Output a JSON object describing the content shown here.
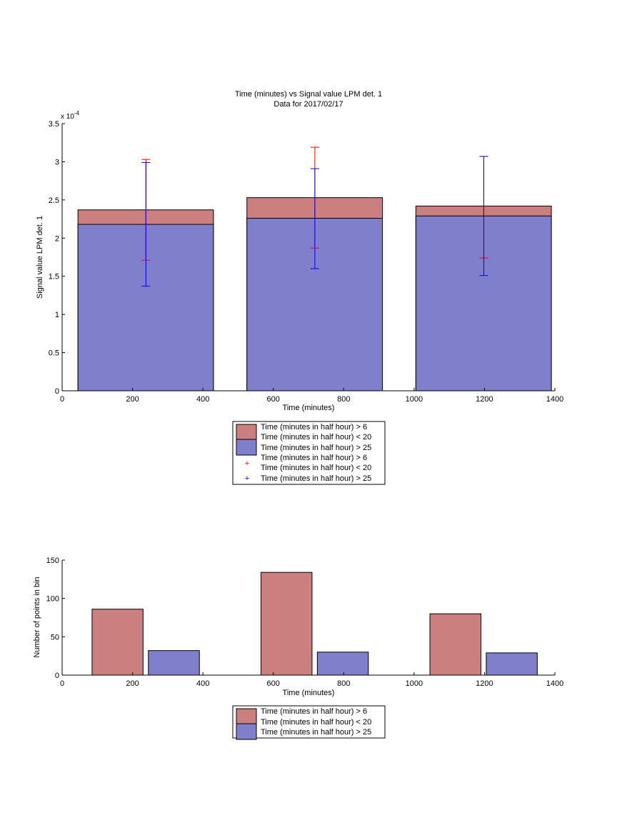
{
  "colors": {
    "red": "#cc7f7f",
    "blue": "#7f7fcc",
    "err_red": "#ff0000",
    "err_blue": "#0000ff"
  },
  "chart_data": [
    {
      "type": "bar",
      "title": "Time (minutes) vs Signal value LPM det. 1",
      "subtitle": "Data for 2017/02/17",
      "xlabel": "Time (minutes)",
      "ylabel": "Signal value LPM det. 1",
      "xlim": [
        0,
        1400
      ],
      "ylim": [
        0,
        3.5
      ],
      "y_multiplier_label": "x 10",
      "y_multiplier_exponent": "-4",
      "xticks": [
        "0",
        "200",
        "400",
        "600",
        "800",
        "1000",
        "1200",
        "1400"
      ],
      "yticks": [
        "0",
        "0.5",
        "1",
        "1.5",
        "2",
        "2.5",
        "3",
        "3.5"
      ],
      "bars": [
        {
          "x0": 45,
          "x1": 430,
          "red_top": 2.37,
          "blue_top": 2.18
        },
        {
          "x0": 525,
          "x1": 910,
          "red_top": 2.53,
          "blue_top": 2.26
        },
        {
          "x0": 1005,
          "x1": 1390,
          "red_top": 2.42,
          "blue_top": 2.29
        }
      ],
      "errorbars": [
        {
          "x": 238,
          "red_low": 1.71,
          "red_high": 3.03,
          "blue_low": 1.37,
          "blue_high": 2.99
        },
        {
          "x": 718,
          "red_low": 1.87,
          "red_high": 3.19,
          "blue_low": 1.6,
          "blue_high": 2.91
        },
        {
          "x": 1198,
          "red_low": 1.74,
          "red_high": 3.07,
          "blue_low": 1.51,
          "blue_high": 3.07
        }
      ],
      "legend": [
        "Time (minutes in half hour) > 6",
        "Time (minutes in half hour) < 20",
        "Time (minutes in half hour) > 25",
        "Time (minutes in half hour) > 6",
        "Time (minutes in half hour) < 20",
        "Time (minutes in half hour) > 25"
      ],
      "legend_placement": "below"
    },
    {
      "type": "bar",
      "xlabel": "Time (minutes)",
      "ylabel": "Number of points in bin",
      "xlim": [
        0,
        1400
      ],
      "ylim": [
        0,
        150
      ],
      "xticks": [
        "0",
        "200",
        "400",
        "600",
        "800",
        "1000",
        "1200",
        "1400"
      ],
      "yticks": [
        "0",
        "50",
        "100",
        "150"
      ],
      "series": [
        {
          "color": "red",
          "bars": [
            {
              "x0": 85,
              "x1": 230,
              "value": 86
            },
            {
              "x0": 565,
              "x1": 710,
              "value": 134
            },
            {
              "x0": 1045,
              "x1": 1190,
              "value": 80
            }
          ]
        },
        {
          "color": "blue",
          "bars": [
            {
              "x0": 245,
              "x1": 390,
              "value": 32
            },
            {
              "x0": 725,
              "x1": 870,
              "value": 30
            },
            {
              "x0": 1205,
              "x1": 1350,
              "value": 29
            }
          ]
        }
      ],
      "legend": [
        "Time (minutes in half hour) > 6",
        "Time (minutes in half hour) < 20",
        "Time (minutes in half hour) > 25"
      ],
      "legend_placement": "below"
    }
  ]
}
